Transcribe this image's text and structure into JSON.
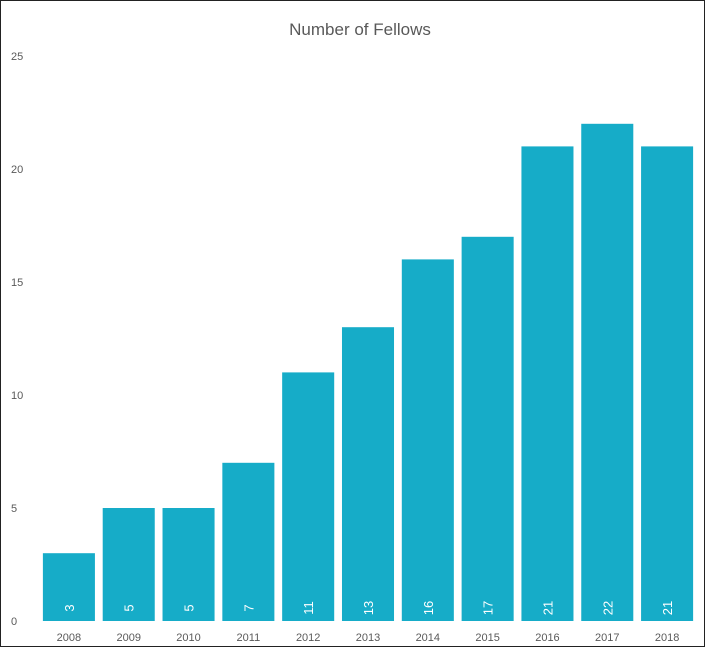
{
  "chart_data": {
    "type": "bar",
    "title": "Number of Fellows",
    "xlabel": "",
    "ylabel": "",
    "categories": [
      "2008",
      "2009",
      "2010",
      "2011",
      "2012",
      "2013",
      "2014",
      "2015",
      "2016",
      "2017",
      "2018"
    ],
    "values": [
      3,
      5,
      5,
      7,
      11,
      13,
      16,
      17,
      21,
      22,
      21
    ],
    "ylim": [
      0,
      25
    ],
    "yticks": [
      0,
      5,
      10,
      15,
      20,
      25
    ],
    "grid": false,
    "legend": "none",
    "data_labels": "inside-bottom, rotated vertical",
    "bar_color": "#16ACC8",
    "label_color": "#FFFFFF",
    "text_color": "#595959"
  }
}
